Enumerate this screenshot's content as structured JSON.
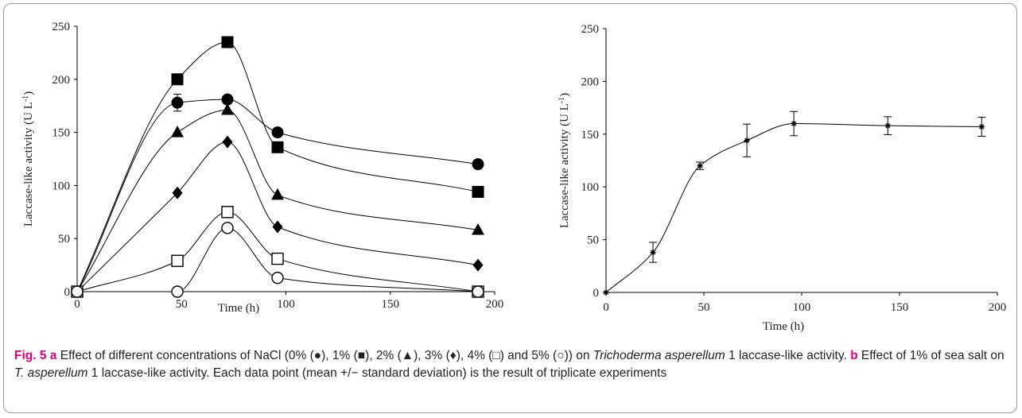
{
  "chart_data": [
    {
      "type": "scatter",
      "panel": "a",
      "xlabel": "Time (h)",
      "ylabel": "Laccase-like activity (U L",
      "ylabel_sup": "-1",
      "ylabel_close": ")",
      "xlim": [
        0,
        200
      ],
      "ylim": [
        0,
        250
      ],
      "xticks": [
        "0",
        "50",
        "100",
        "150",
        "200"
      ],
      "yticks": [
        "0",
        "50",
        "100",
        "150",
        "200",
        "250"
      ],
      "grid": false,
      "series": [
        {
          "name": "0%",
          "marker": "circle-filled",
          "x": [
            0,
            48,
            72,
            96,
            192
          ],
          "y": [
            0,
            178,
            181,
            150,
            120
          ],
          "err": [
            0,
            8,
            0,
            0,
            0
          ]
        },
        {
          "name": "1%",
          "marker": "square-filled",
          "x": [
            0,
            48,
            72,
            96,
            192
          ],
          "y": [
            0,
            200,
            235,
            136,
            94
          ],
          "err": [
            0,
            0,
            0,
            0,
            0
          ]
        },
        {
          "name": "2%",
          "marker": "triangle-filled",
          "x": [
            0,
            48,
            72,
            96,
            192
          ],
          "y": [
            0,
            150,
            171,
            91,
            58
          ],
          "err": [
            0,
            0,
            0,
            0,
            0
          ]
        },
        {
          "name": "3%",
          "marker": "diamond-filled",
          "x": [
            0,
            48,
            72,
            96,
            192
          ],
          "y": [
            0,
            93,
            141,
            61,
            25
          ],
          "err": [
            0,
            0,
            0,
            0,
            0
          ]
        },
        {
          "name": "4%",
          "marker": "square-open",
          "x": [
            0,
            48,
            72,
            96,
            192
          ],
          "y": [
            0,
            29,
            75,
            31,
            0
          ],
          "err": [
            0,
            0,
            0,
            0,
            0
          ]
        },
        {
          "name": "5%",
          "marker": "circle-open",
          "x": [
            0,
            48,
            72,
            96,
            192
          ],
          "y": [
            0,
            0,
            60,
            13,
            0
          ],
          "err": [
            0,
            0,
            0,
            0,
            0
          ]
        }
      ]
    },
    {
      "type": "line",
      "panel": "b",
      "xlabel": "Time (h)",
      "ylabel": "Laccase-like activity (U L",
      "ylabel_sup": "-1",
      "ylabel_close": ")",
      "xlim": [
        0,
        200
      ],
      "ylim": [
        0,
        250
      ],
      "xticks": [
        "0",
        "50",
        "100",
        "150",
        "200"
      ],
      "yticks": [
        "0",
        "50",
        "100",
        "150",
        "200",
        "250"
      ],
      "grid": false,
      "series": [
        {
          "name": "1% sea salt",
          "marker": "asterisk",
          "x": [
            0,
            24,
            48,
            72,
            96,
            144,
            192
          ],
          "y": [
            0,
            38,
            120,
            144,
            160,
            158,
            157
          ],
          "err": [
            0,
            9.5,
            3.5,
            15.5,
            11.5,
            8.5,
            9
          ]
        }
      ]
    }
  ],
  "caption": {
    "fig_label": "Fig. 5",
    "a_label": "a",
    "part1": " Effect of different concentrations of NaCl (0% (●), 1% (■), 2% (▲), 3% (♦), 4% (□) and 5% (○)) on ",
    "species_full": "Trichoderma asperellum",
    "part2": " 1 laccase-like activity. ",
    "b_label": "b",
    "part3": " Effect of 1% of sea salt on ",
    "species_abbr": "T. asperellum",
    "part4": " 1 laccase-like activity. Each data point (mean +/− standard deviation) is the result of triplicate experiments"
  }
}
